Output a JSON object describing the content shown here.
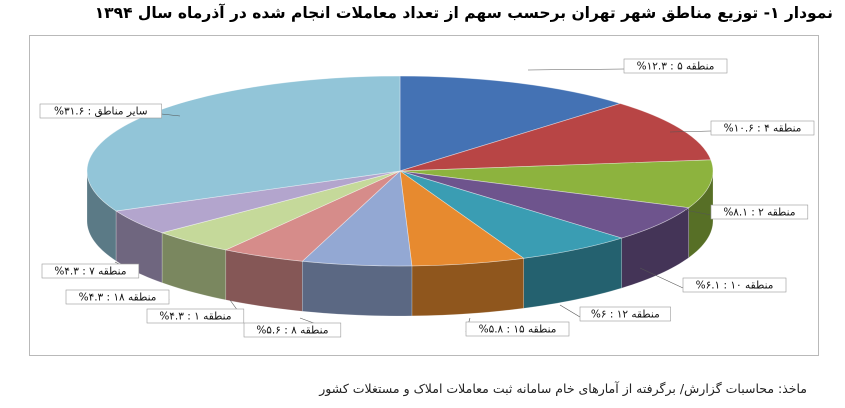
{
  "title": "نمودار ۱- توزیع مناطق شهر تهران برحسب سهم از تعداد معاملات انجام شده در آذرماه سال ۱۳۹۴",
  "source": "ماخذ: محاسبات گزارش/ برگرفته از آمارهای خام سامانه ثبت معاملات املاک و مستغلات کشور",
  "chart_data": {
    "type": "pie",
    "style": "3d-pie",
    "slices": [
      {
        "label": "منطقه ۵ : ۱۲.۳%",
        "value": 12.3,
        "color": "#4472b4"
      },
      {
        "label": "منطقه ۴ : ۱۰.۶%",
        "value": 10.6,
        "color": "#b84545"
      },
      {
        "label": "منطقه ۲ : ۸.۱%",
        "value": 8.1,
        "color": "#8db33e"
      },
      {
        "label": "منطقه ۱۰ : ۶.۱%",
        "value": 6.1,
        "color": "#6e548d"
      },
      {
        "label": "منطقه ۱۲ : ۶%",
        "value": 6.0,
        "color": "#3a9db3"
      },
      {
        "label": "منطقه ۱۵ : ۵.۸%",
        "value": 5.8,
        "color": "#e78a2f"
      },
      {
        "label": "منطقه ۸ : ۵.۶%",
        "value": 5.6,
        "color": "#93a8d3"
      },
      {
        "label": "منطقه ۱ : ۴.۳%",
        "value": 4.3,
        "color": "#d68c8a"
      },
      {
        "label": "منطقه ۱۸ : ۴.۳%",
        "value": 4.3,
        "color": "#c5d99a"
      },
      {
        "label": "منطقه ۷ : ۴.۳%",
        "value": 4.3,
        "color": "#b3a5cd"
      },
      {
        "label": "سایر مناطق : ۳۱.۶%",
        "value": 31.6,
        "color": "#92c5d8"
      }
    ]
  }
}
